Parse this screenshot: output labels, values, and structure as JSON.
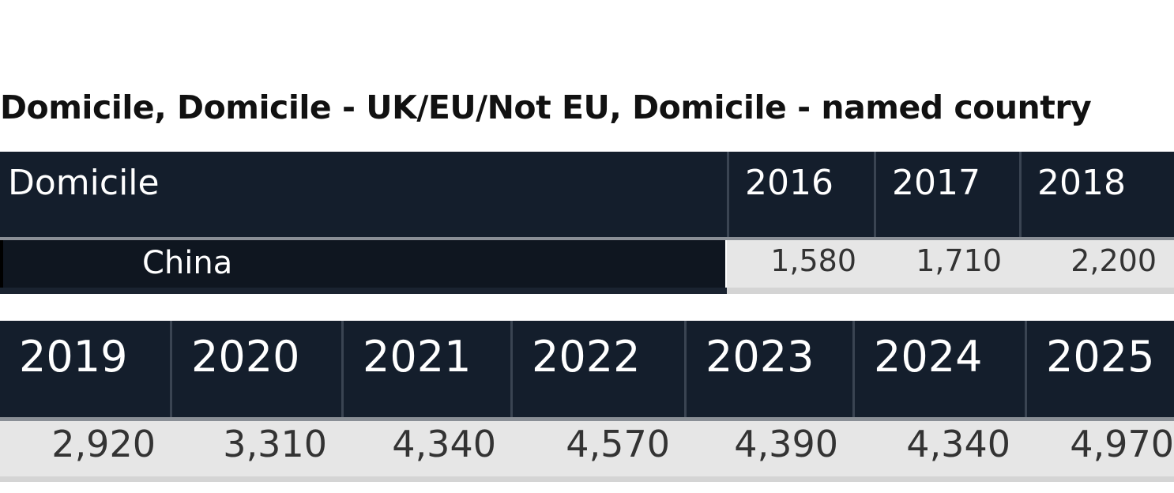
{
  "title": "Domicile, Domicile - UK/EU/Not EU, Domicile - named country",
  "table_top": {
    "header_label": "Domicile",
    "years": [
      "2016",
      "2017",
      "2018"
    ],
    "row_label": "China",
    "values": [
      "1,580",
      "1,710",
      "2,200"
    ]
  },
  "table_bottom": {
    "years": [
      "2019",
      "2020",
      "2021",
      "2022",
      "2023",
      "2024",
      "2025"
    ],
    "values": [
      "2,920",
      "3,310",
      "4,340",
      "4,570",
      "4,390",
      "4,340",
      "4,970"
    ]
  },
  "colors": {
    "header_bg": "#141e2c",
    "value_bg": "#e6e6e6"
  }
}
